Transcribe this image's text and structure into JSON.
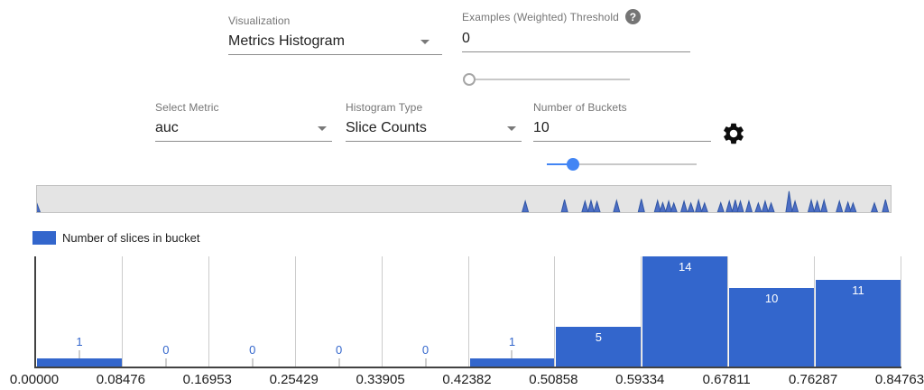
{
  "controls": {
    "visualization": {
      "label": "Visualization",
      "value": "Metrics Histogram"
    },
    "threshold": {
      "label": "Examples (Weighted) Threshold",
      "value": "0",
      "help_icon": "question-mark",
      "slider_percent": 0
    },
    "metric": {
      "label": "Select Metric",
      "value": "auc"
    },
    "histogram_type": {
      "label": "Histogram Type",
      "value": "Slice Counts"
    },
    "num_buckets": {
      "label": "Number of Buckets",
      "value": "10",
      "slider_percent": 17.5
    },
    "settings_icon": "gear"
  },
  "overview_strip": {
    "spike_fill": "#4d6ec5",
    "spike_stroke": "#2f55a4",
    "spikes": [
      {
        "x": 0.0,
        "h": 0.32
      },
      {
        "x": 0.572,
        "h": 0.42
      },
      {
        "x": 0.618,
        "h": 0.48
      },
      {
        "x": 0.642,
        "h": 0.42
      },
      {
        "x": 0.649,
        "h": 0.44
      },
      {
        "x": 0.656,
        "h": 0.4
      },
      {
        "x": 0.679,
        "h": 0.44
      },
      {
        "x": 0.708,
        "h": 0.5
      },
      {
        "x": 0.727,
        "h": 0.44
      },
      {
        "x": 0.733,
        "h": 0.36
      },
      {
        "x": 0.74,
        "h": 0.42
      },
      {
        "x": 0.746,
        "h": 0.35
      },
      {
        "x": 0.758,
        "h": 0.42
      },
      {
        "x": 0.766,
        "h": 0.35
      },
      {
        "x": 0.775,
        "h": 0.46
      },
      {
        "x": 0.782,
        "h": 0.35
      },
      {
        "x": 0.801,
        "h": 0.36
      },
      {
        "x": 0.811,
        "h": 0.42
      },
      {
        "x": 0.818,
        "h": 0.47
      },
      {
        "x": 0.824,
        "h": 0.42
      },
      {
        "x": 0.834,
        "h": 0.42
      },
      {
        "x": 0.845,
        "h": 0.35
      },
      {
        "x": 0.853,
        "h": 0.42
      },
      {
        "x": 0.86,
        "h": 0.35
      },
      {
        "x": 0.881,
        "h": 0.8
      },
      {
        "x": 0.888,
        "h": 0.42
      },
      {
        "x": 0.907,
        "h": 0.46
      },
      {
        "x": 0.914,
        "h": 0.42
      },
      {
        "x": 0.922,
        "h": 0.46
      },
      {
        "x": 0.94,
        "h": 0.42
      },
      {
        "x": 0.95,
        "h": 0.38
      },
      {
        "x": 0.956,
        "h": 0.35
      },
      {
        "x": 0.981,
        "h": 0.35
      },
      {
        "x": 0.994,
        "h": 0.48
      }
    ]
  },
  "legend": {
    "label": "Number of slices in bucket",
    "swatch_color": "#3366cc"
  },
  "chart_data": {
    "type": "bar",
    "series_name": "Number of slices in bucket",
    "x_tick_labels": [
      "0.00000",
      "0.08476",
      "0.16953",
      "0.25429",
      "0.33905",
      "0.42382",
      "0.50858",
      "0.59334",
      "0.67811",
      "0.76287",
      "0.84763"
    ],
    "values": [
      1,
      0,
      0,
      0,
      0,
      1,
      5,
      14,
      10,
      11
    ],
    "ylim": [
      0,
      14
    ],
    "grid": true,
    "bar_color": "#3366cc",
    "annotation_color_outside": "#3366cc",
    "annotation_color_inside": "#ffffff"
  }
}
